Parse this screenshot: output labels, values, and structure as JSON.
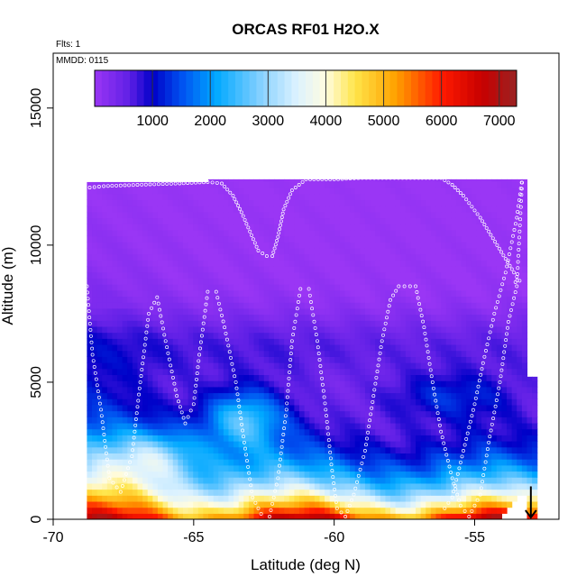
{
  "chart_data": {
    "type": "heatmap",
    "title": "ORCAS RF01 H2O.X",
    "annotations": [
      "Flts: 1",
      "MMDD: 0115"
    ],
    "xlabel": "Latitude (deg N)",
    "ylabel": "Altitude (m)",
    "xlim": [
      -70,
      -52
    ],
    "ylim": [
      0,
      17000
    ],
    "x_ticks": [
      -70,
      -65,
      -60,
      -55
    ],
    "x_tick_labels": [
      "-70",
      "-65",
      "-60",
      "-55"
    ],
    "y_ticks": [
      0,
      5000,
      10000,
      15000
    ],
    "y_tick_labels": [
      "0",
      "5000",
      "10000",
      "15000"
    ],
    "grid": false,
    "colorbar": {
      "placement": "top-inside",
      "range": [
        0,
        7300
      ],
      "ticks": [
        1000,
        2000,
        3000,
        4000,
        5000,
        6000,
        7000
      ],
      "tick_labels": [
        "1000",
        "2000",
        "3000",
        "4000",
        "5000",
        "6000",
        "7000"
      ],
      "stops": [
        {
          "v": 0,
          "c": "#9a36f5"
        },
        {
          "v": 600,
          "c": "#6020e6"
        },
        {
          "v": 1000,
          "c": "#0000c8"
        },
        {
          "v": 1500,
          "c": "#0050f0"
        },
        {
          "v": 2100,
          "c": "#00a8ff"
        },
        {
          "v": 2900,
          "c": "#8ad2ff"
        },
        {
          "v": 3500,
          "c": "#dcf2ff"
        },
        {
          "v": 4000,
          "c": "#fffce0"
        },
        {
          "v": 4500,
          "c": "#ffe54a"
        },
        {
          "v": 5200,
          "c": "#ffa200"
        },
        {
          "v": 6000,
          "c": "#ff1a00"
        },
        {
          "v": 6700,
          "c": "#c80000"
        },
        {
          "v": 7300,
          "c": "#9a2222"
        }
      ]
    },
    "domain": {
      "lat_min": -68.8,
      "lat_max": -52.8,
      "alt_max": 12300
    },
    "flight_track": [
      [
        -68.8,
        8500
      ],
      [
        -68.6,
        6000
      ],
      [
        -68.3,
        4000
      ],
      [
        -68.0,
        1500
      ],
      [
        -67.6,
        1000
      ],
      [
        -67.2,
        2300
      ],
      [
        -66.9,
        5000
      ],
      [
        -66.6,
        7500
      ],
      [
        -66.3,
        8100
      ],
      [
        -66.0,
        6500
      ],
      [
        -65.6,
        4500
      ],
      [
        -65.3,
        3500
      ],
      [
        -65.0,
        4200
      ],
      [
        -64.8,
        6000
      ],
      [
        -64.5,
        8300
      ],
      [
        -64.2,
        8300
      ],
      [
        -63.9,
        7000
      ],
      [
        -63.5,
        5000
      ],
      [
        -63.2,
        2800
      ],
      [
        -62.9,
        800
      ],
      [
        -62.6,
        200
      ],
      [
        -62.3,
        100
      ],
      [
        -62.0,
        1500
      ],
      [
        -61.7,
        4000
      ],
      [
        -61.5,
        6500
      ],
      [
        -61.2,
        8400
      ],
      [
        -60.9,
        8400
      ],
      [
        -60.6,
        6500
      ],
      [
        -60.3,
        4000
      ],
      [
        -60.1,
        2000
      ],
      [
        -59.9,
        400
      ],
      [
        -59.6,
        100
      ],
      [
        -59.3,
        900
      ],
      [
        -58.9,
        2500
      ],
      [
        -58.6,
        4500
      ],
      [
        -58.3,
        6500
      ],
      [
        -58.0,
        8000
      ],
      [
        -57.7,
        8500
      ],
      [
        -57.1,
        8500
      ],
      [
        -56.8,
        7000
      ],
      [
        -56.5,
        5000
      ],
      [
        -56.2,
        3200
      ],
      [
        -55.8,
        1500
      ],
      [
        -55.5,
        500
      ],
      [
        -55.2,
        100
      ],
      [
        -54.8,
        900
      ],
      [
        -54.5,
        2800
      ],
      [
        -54.1,
        5000
      ],
      [
        -53.8,
        7200
      ],
      [
        -53.5,
        8500
      ],
      [
        -53.4,
        10500
      ],
      [
        -53.3,
        12500
      ],
      [
        -53.5,
        11000
      ],
      [
        -53.9,
        9000
      ],
      [
        -54.3,
        7500
      ],
      [
        -54.7,
        5700
      ],
      [
        -55.0,
        4200
      ],
      [
        -55.4,
        2500
      ],
      [
        -55.8,
        800
      ],
      [
        -56.2,
        200
      ]
    ],
    "upper_track": [
      [
        -68.7,
        12100
      ],
      [
        -68.2,
        12150
      ],
      [
        -67.0,
        12200
      ],
      [
        -65.5,
        12250
      ],
      [
        -64.5,
        12300
      ],
      [
        -64.0,
        12250
      ],
      [
        -63.6,
        11800
      ],
      [
        -63.3,
        11200
      ],
      [
        -63.0,
        10500
      ],
      [
        -62.7,
        9800
      ],
      [
        -62.4,
        9600
      ],
      [
        -62.2,
        9600
      ],
      [
        -62.0,
        10300
      ],
      [
        -61.8,
        11300
      ],
      [
        -61.5,
        12000
      ],
      [
        -61.0,
        12400
      ],
      [
        -60.0,
        12400
      ],
      [
        -59.0,
        12450
      ],
      [
        -58.0,
        12450
      ],
      [
        -57.0,
        12450
      ],
      [
        -56.2,
        12450
      ],
      [
        -55.8,
        12200
      ],
      [
        -55.4,
        11800
      ],
      [
        -55.1,
        11400
      ],
      [
        -54.8,
        11000
      ],
      [
        -54.5,
        10500
      ],
      [
        -54.2,
        10000
      ],
      [
        -53.9,
        9500
      ],
      [
        -53.6,
        9000
      ],
      [
        -53.4,
        8700
      ],
      [
        -53.7,
        8600
      ]
    ],
    "marker": {
      "type": "arrow-down",
      "lat": -53.0,
      "alt": 600
    }
  }
}
